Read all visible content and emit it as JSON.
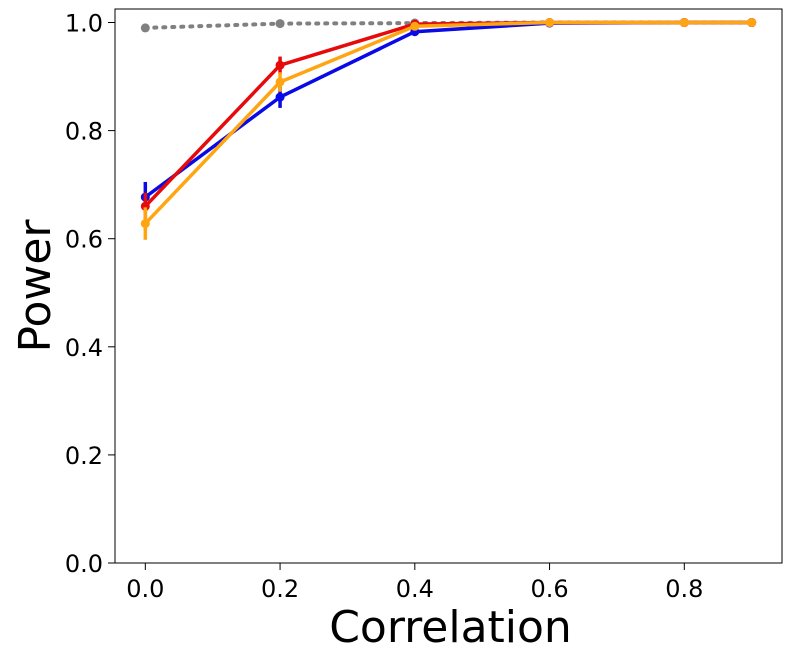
{
  "chart_data": {
    "type": "line",
    "title": "",
    "xlabel": "Correlation",
    "ylabel": "Power",
    "xlim": [
      -0.045,
      0.945
    ],
    "ylim": [
      0.0,
      1.025
    ],
    "xticks": [
      0.0,
      0.2,
      0.4,
      0.6,
      0.8
    ],
    "xtick_labels": [
      "0.0",
      "0.2",
      "0.4",
      "0.6",
      "0.8"
    ],
    "yticks": [
      0.0,
      0.2,
      0.4,
      0.6,
      0.8,
      1.0
    ],
    "ytick_labels": [
      "0.0",
      "0.2",
      "0.4",
      "0.6",
      "0.8",
      "1.0"
    ],
    "grid": false,
    "legend": "none",
    "x": [
      0.0,
      0.2,
      0.4,
      0.6,
      0.8,
      0.9
    ],
    "series": [
      {
        "name": "gray",
        "color": "#808080",
        "style": "dotted",
        "x": [
          0.0,
          0.2,
          0.4,
          0.6,
          0.8,
          0.9
        ],
        "values": [
          0.99,
          0.998,
          0.999,
          1.0,
          1.0,
          1.0
        ],
        "error": [
          0,
          0,
          0,
          0,
          0,
          0
        ]
      },
      {
        "name": "blue",
        "color": "#0a0ae6",
        "style": "solid",
        "x": [
          0.0,
          0.2,
          0.4,
          0.6,
          0.8,
          0.9
        ],
        "values": [
          0.677,
          0.862,
          0.983,
          0.999,
          1.0,
          1.0
        ],
        "error": [
          0.028,
          0.02,
          0.005,
          0.001,
          0,
          0
        ]
      },
      {
        "name": "red",
        "color": "#e60a0a",
        "style": "solid",
        "x": [
          0.0,
          0.2,
          0.4,
          0.6,
          0.8,
          0.9
        ],
        "values": [
          0.66,
          0.921,
          0.997,
          1.0,
          1.0,
          1.0
        ],
        "error": [
          0.025,
          0.016,
          0.003,
          0,
          0,
          0
        ]
      },
      {
        "name": "orange",
        "color": "#ffa512",
        "style": "solid",
        "x": [
          0.0,
          0.2,
          0.4,
          0.6,
          0.8,
          0.9
        ],
        "values": [
          0.628,
          0.89,
          0.993,
          1.0,
          1.0,
          1.0
        ],
        "error": [
          0.03,
          0.018,
          0.004,
          0,
          0,
          0
        ]
      }
    ]
  }
}
